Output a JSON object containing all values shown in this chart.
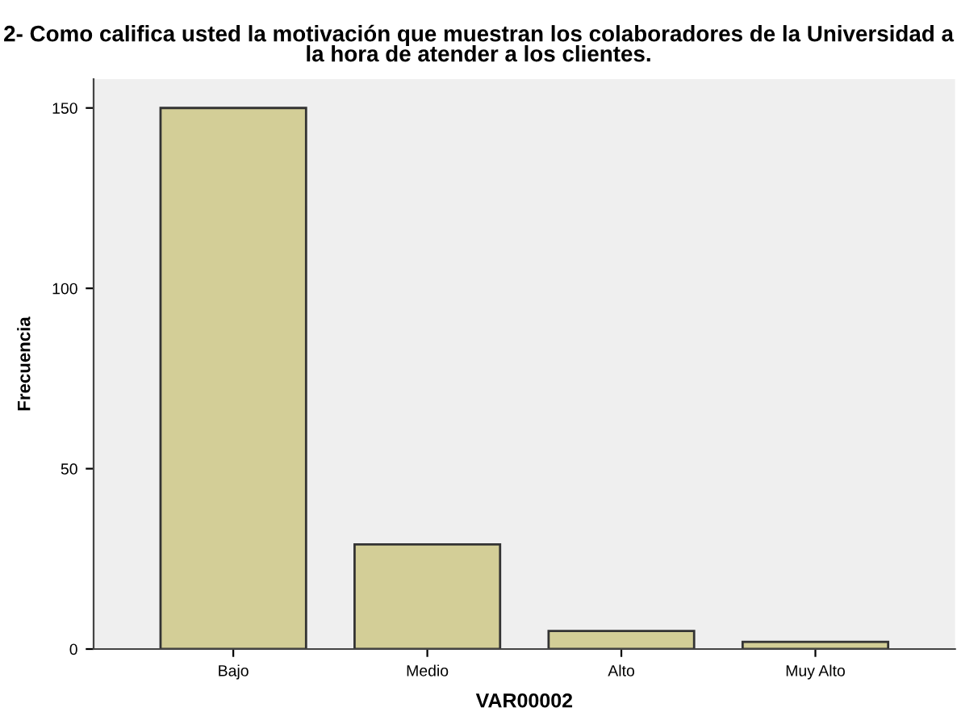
{
  "chart_data": {
    "type": "bar",
    "title": "2- Como califica usted la motivación que muestran los colaboradores de la Universidad a la hora de atender a los clientes.",
    "xlabel": "VAR00002",
    "ylabel": "Frecuencia",
    "categories": [
      "Bajo",
      "Medio",
      "Alto",
      "Muy Alto"
    ],
    "values": [
      150,
      29,
      5,
      2
    ],
    "color": "#d3ce97",
    "ylim": [
      0,
      158
    ],
    "yticks": [
      0,
      50,
      100,
      150
    ],
    "grid": false,
    "legend": false
  }
}
